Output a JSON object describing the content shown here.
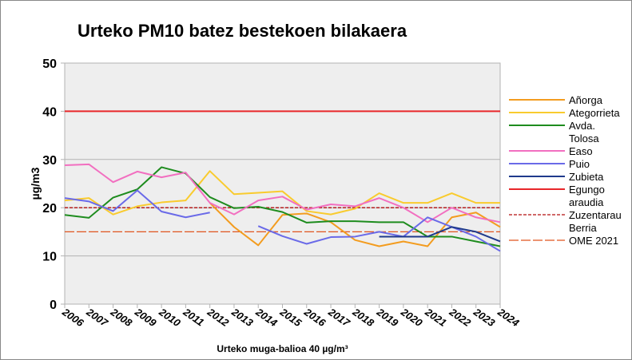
{
  "chart_data": {
    "type": "line",
    "title": "Urteko PM10 batez bestekoen bilakaera",
    "ylabel": "µg/m3",
    "xlabel": "Urteko muga-balioa 40 µg/m³",
    "ylim": [
      0,
      50
    ],
    "yticks": [
      0,
      10,
      20,
      30,
      40,
      50
    ],
    "grid": true,
    "legend_position": "right",
    "categories": [
      "2006",
      "2007",
      "2008",
      "2009",
      "2010",
      "2011",
      "2012",
      "2013",
      "2014",
      "2015",
      "2016",
      "2017",
      "2018",
      "2019",
      "2020",
      "2021",
      "2022",
      "2023",
      "2024"
    ],
    "series": [
      {
        "name": "Añorga",
        "color": "#f39c1f",
        "values": [
          null,
          null,
          null,
          null,
          null,
          null,
          21,
          16,
          12.2,
          18.5,
          18.8,
          17,
          13.3,
          12,
          13,
          12,
          18,
          19,
          16
        ]
      },
      {
        "name": "Ategorrieta",
        "color": "#f9cb2e",
        "values": [
          21.5,
          22,
          18.6,
          20.3,
          21.1,
          21.5,
          27.6,
          22.8,
          23.1,
          23.4,
          19.3,
          18.6,
          19.8,
          23,
          21,
          21,
          23,
          21,
          21
        ]
      },
      {
        "name": "Avda. Tolosa",
        "color": "#1e8c1e",
        "values": [
          18.5,
          17.9,
          22.1,
          23.8,
          28.4,
          27.1,
          22.2,
          19.9,
          20.2,
          19.1,
          16.9,
          17.2,
          17.2,
          17,
          17,
          14,
          14,
          13,
          12
        ]
      },
      {
        "name": "Easo",
        "color": "#f26fc0",
        "values": [
          28.8,
          29,
          25.3,
          27.5,
          26.3,
          27.3,
          21,
          18.6,
          21.5,
          22.3,
          19.6,
          20.7,
          20.3,
          22,
          20,
          17,
          20,
          18,
          17
        ]
      },
      {
        "name": "Puio",
        "color": "#6a6ae8",
        "values": [
          22,
          21.3,
          19.3,
          23.6,
          19.2,
          18,
          19,
          null,
          16.2,
          14.1,
          12.5,
          13.9,
          14,
          15,
          14,
          18,
          16,
          14,
          11
        ]
      },
      {
        "name": "Zubieta",
        "color": "#1f3a8c",
        "values": [
          null,
          null,
          null,
          null,
          null,
          null,
          null,
          null,
          null,
          null,
          null,
          null,
          null,
          14,
          14,
          14,
          16,
          15,
          13
        ]
      }
    ],
    "reference_lines": [
      {
        "name": "Egungo araudia",
        "value": 40,
        "color": "#e8262a",
        "style": "solid"
      },
      {
        "name": "Zuzentarau Berria",
        "value": 20,
        "color": "#b30f0f",
        "style": "dashed"
      },
      {
        "name": "OME 2021",
        "value": 15,
        "color": "#e0541f",
        "style": "longdash"
      }
    ],
    "legend": [
      "Añorga",
      "Ategorrieta",
      "Avda. Tolosa",
      "Easo",
      "Puio",
      "Zubieta",
      "Egungo araudia",
      "Zuzentarau Berria",
      "OME 2021"
    ]
  }
}
